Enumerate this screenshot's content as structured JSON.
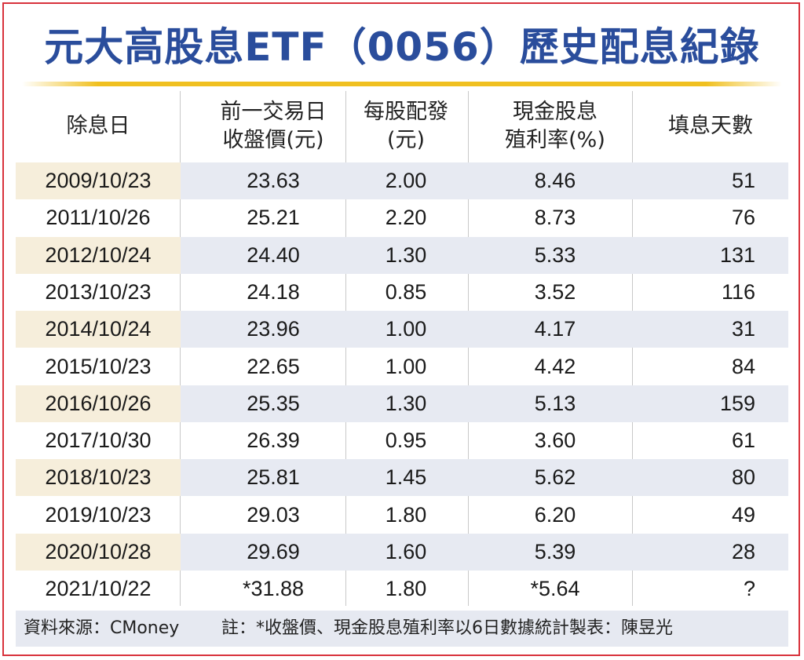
{
  "title": "元大高股息ETF（0056）歷史配息紀錄",
  "colors": {
    "title": "#2a4d9c",
    "accent_line": "#f0c020",
    "border": "#d8323c",
    "row_shade": "#e7eaf2",
    "date_shade": "#f6eedb"
  },
  "chart_data": {
    "type": "table",
    "title": "元大高股息ETF（0056）歷史配息紀錄",
    "columns": [
      {
        "line1": "除息日",
        "line2": ""
      },
      {
        "line1": "前一交易日",
        "line2": "收盤價(元)"
      },
      {
        "line1": "每股配發",
        "line2": "(元)"
      },
      {
        "line1": "現金股息",
        "line2": "殖利率(%)"
      },
      {
        "line1": "填息天數",
        "line2": ""
      }
    ],
    "rows": [
      [
        "2009/10/23",
        "23.63",
        "2.00",
        "8.46",
        "51"
      ],
      [
        "2011/10/26",
        "25.21",
        "2.20",
        "8.73",
        "76"
      ],
      [
        "2012/10/24",
        "24.40",
        "1.30",
        "5.33",
        "131"
      ],
      [
        "2013/10/23",
        "24.18",
        "0.85",
        "3.52",
        "116"
      ],
      [
        "2014/10/24",
        "23.96",
        "1.00",
        "4.17",
        "31"
      ],
      [
        "2015/10/23",
        "22.65",
        "1.00",
        "4.42",
        "84"
      ],
      [
        "2016/10/26",
        "25.35",
        "1.30",
        "5.13",
        "159"
      ],
      [
        "2017/10/30",
        "26.39",
        "0.95",
        "3.60",
        "61"
      ],
      [
        "2018/10/23",
        "25.81",
        "1.45",
        "5.62",
        "80"
      ],
      [
        "2019/10/23",
        "29.03",
        "1.80",
        "6.20",
        "49"
      ],
      [
        "2020/10/28",
        "29.69",
        "1.60",
        "5.39",
        "28"
      ],
      [
        "2021/10/22",
        "*31.88",
        "1.80",
        "*5.64",
        "?"
      ]
    ]
  },
  "footer": {
    "source": "資料來源：CMoney",
    "note": "註：*收盤價、現金股息殖利率以6日數據統計製表：陳昱光"
  }
}
